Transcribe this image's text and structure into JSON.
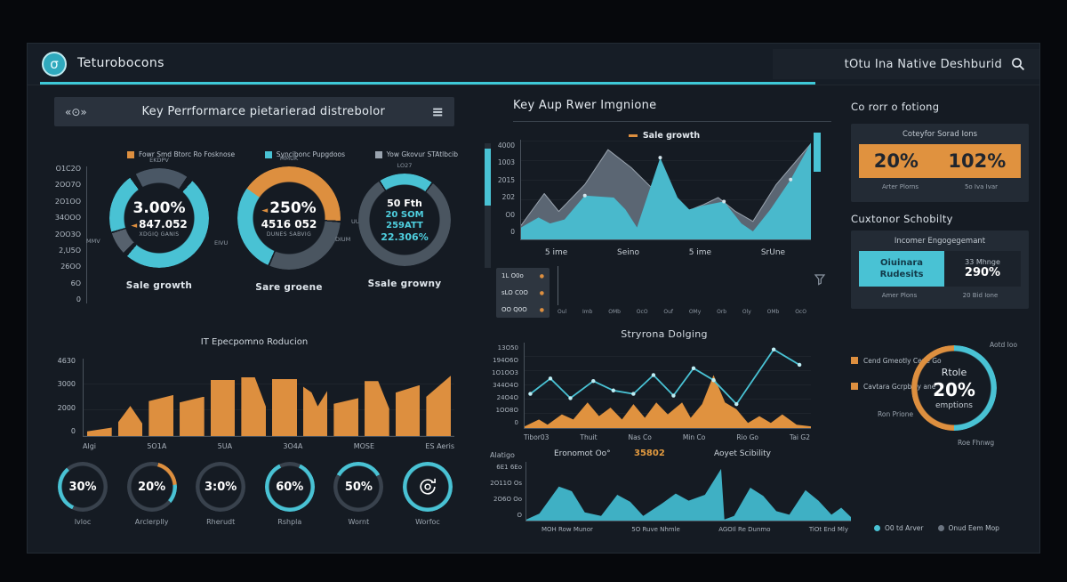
{
  "topbar": {
    "logo": "Teturobocons",
    "logo_glyph": "σ",
    "right_title": "tOtu Ina Native Deshburid"
  },
  "left": {
    "header_title": "Key Perrformarce pietarierad distrebolor",
    "view_icon": "«⊙»",
    "menu_icon": "≡",
    "legend": [
      {
        "label": "Fowr Smd Btorc Ro Fosknose",
        "color": "#dd8f3f"
      },
      {
        "label": "Syncibonc Pupgdoos",
        "color": "#49c2d4"
      },
      {
        "label": "Yow Gkovur STAtlbcib",
        "color": "#9aa4af"
      }
    ],
    "y_axis": [
      "O1C2O",
      "2OO7O",
      "2O1OO",
      "34OOO",
      "2OO3O",
      "2,U5O",
      "26OO",
      "6O",
      "0"
    ],
    "donuts": [
      {
        "label": "Sale growth",
        "tag_top": "EKDPV",
        "tag_side": "MMV",
        "size": 112,
        "t": 17,
        "lines": [
          {
            "t": "3.00%",
            "cls": "l-big"
          },
          {
            "t": "847.052",
            "cls": "l-mid",
            "arrow": true
          },
          {
            "t": "XDGIQ GANIS",
            "cls": "l-tiny"
          }
        ],
        "arcs": [
          {
            "c": "#4a5765",
            "f": -28,
            "l": 62
          },
          {
            "c": "#49c2d4",
            "f": 42,
            "l": 178
          },
          {
            "c": "#56616d",
            "f": 226,
            "l": 26
          },
          {
            "c": "#49c2d4",
            "f": 254,
            "l": 70
          }
        ]
      },
      {
        "label": "Sare groene",
        "tag_top": "MMUK",
        "tag_side": "EIVU",
        "tag_right": "UUA",
        "size": 116,
        "t": 18,
        "lines": [
          {
            "t": "250%",
            "cls": "l-big",
            "arrow": true
          },
          {
            "t": "4516 052",
            "cls": "l-mid"
          },
          {
            "t": "DUNES SABVIG",
            "cls": "l-tiny"
          }
        ],
        "arcs": [
          {
            "c": "#49c2d4",
            "f": -62,
            "l": 7
          },
          {
            "c": "#dd8f3f",
            "f": -55,
            "l": 148
          },
          {
            "c": "#4a5560",
            "f": 95,
            "l": 107
          },
          {
            "c": "#49c2d4",
            "f": 204,
            "l": 98
          }
        ]
      },
      {
        "label": "Ssale growny",
        "tag_top": "LO27",
        "tag_side": "DIUM",
        "size": 104,
        "t": 13,
        "lines": [
          {
            "t": "50 Fth",
            "cls": "l-mid2"
          },
          {
            "t": "20 SOM",
            "cls": "l-teal"
          },
          {
            "t": "259ATT",
            "cls": "l-teal"
          },
          {
            "t": "22.306%",
            "cls": "l-teal2"
          }
        ],
        "arcs": [
          {
            "c": "#49c2d4",
            "f": -32,
            "l": 68
          },
          {
            "c": "#4a5560",
            "f": 38,
            "l": 288
          }
        ]
      }
    ],
    "bar_chart": {
      "title": "IT Epecpomno Roducion",
      "color": "#dd8f3f",
      "y_ticks": [
        "4630",
        "3000",
        "2000",
        "0"
      ],
      "x_labels": [
        "Algi",
        "5O1A",
        "5UA",
        "3O4A",
        "MOSE",
        "ES Aeris"
      ],
      "values": [
        11,
        39,
        53,
        51,
        73,
        76,
        74,
        64,
        49,
        71,
        66,
        78
      ],
      "cuts": [
        "a",
        "b",
        "c",
        "c",
        "",
        "d",
        "",
        "e",
        "c",
        "d",
        "c",
        "f"
      ]
    },
    "kpis": [
      {
        "value": "30%",
        "label": "Ivloc",
        "arcs": [
          {
            "c": "#49c2d4",
            "f": 205,
            "l": 115
          }
        ]
      },
      {
        "value": "20%",
        "label": "Arclerplly",
        "arcs": [
          {
            "c": "#dd8f3f",
            "f": 15,
            "l": 70
          },
          {
            "c": "#49c2d4",
            "f": 85,
            "l": 45
          }
        ]
      },
      {
        "value": "3:0%",
        "label": "Rherudt",
        "arcs": []
      },
      {
        "value": "60%",
        "label": "Rshpla",
        "arcs": [
          {
            "c": "#49c2d4",
            "f": 25,
            "l": 310
          }
        ]
      },
      {
        "value": "50%",
        "label": "Wornt",
        "arcs": [
          {
            "c": "#49c2d4",
            "f": 300,
            "l": 120
          }
        ]
      },
      {
        "value": "",
        "label": "Worfoc",
        "icon": "sync",
        "arcs": [
          {
            "c": "#49c2d4",
            "f": 0,
            "l": 360
          }
        ]
      }
    ]
  },
  "middle": {
    "header": "Key Aup Rwer Imgnione",
    "legend": "Sale growth",
    "area": {
      "y_ticks": [
        "4000",
        "1003",
        "2015",
        "202",
        "O0",
        "0"
      ],
      "x_labels": [
        "5 ime",
        "Seino",
        "5 ime",
        "SrUne"
      ],
      "gray": [
        [
          0,
          14
        ],
        [
          8,
          46
        ],
        [
          13,
          28
        ],
        [
          22,
          55
        ],
        [
          30,
          90
        ],
        [
          38,
          72
        ],
        [
          45,
          52
        ],
        [
          50,
          40
        ],
        [
          57,
          28
        ],
        [
          63,
          35
        ],
        [
          68,
          42
        ],
        [
          74,
          28
        ],
        [
          80,
          18
        ],
        [
          88,
          55
        ],
        [
          100,
          96
        ]
      ],
      "teal": [
        [
          0,
          12
        ],
        [
          6,
          22
        ],
        [
          10,
          16
        ],
        [
          15,
          20
        ],
        [
          22,
          44
        ],
        [
          32,
          42
        ],
        [
          36,
          30
        ],
        [
          40,
          12
        ],
        [
          48,
          82
        ],
        [
          54,
          42
        ],
        [
          58,
          30
        ],
        [
          63,
          34
        ],
        [
          70,
          38
        ],
        [
          76,
          16
        ],
        [
          80,
          8
        ],
        [
          86,
          30
        ],
        [
          93,
          60
        ],
        [
          100,
          97
        ]
      ]
    },
    "mini": {
      "box_lines": [
        "1L O0o",
        "sLO C0O",
        "OO Q0O"
      ],
      "teal": [
        78,
        52,
        68,
        58,
        72,
        62,
        85,
        75,
        66,
        72
      ],
      "gray": [
        26,
        22,
        25,
        23,
        27,
        24,
        29,
        27,
        25,
        22
      ],
      "x_labels": [
        "Oul",
        "Imb",
        "OMb",
        "OcO",
        "Ouf",
        "OMy",
        "Orb",
        "Oly",
        "OMb",
        "OcO"
      ]
    },
    "mid_title": "Stryrona Dolging",
    "line": {
      "y_ticks": [
        "13O50",
        "194O6O",
        "1O1OO3",
        "344O4O",
        "24O4O",
        "1OO8O",
        "0"
      ],
      "x_labels": [
        "Tibor03",
        "Thuit",
        "Nas Co",
        "Min Co",
        "Rio Go",
        "Tai G2"
      ],
      "teal": [
        [
          2,
          40
        ],
        [
          9,
          58
        ],
        [
          16,
          35
        ],
        [
          24,
          55
        ],
        [
          31,
          44
        ],
        [
          38,
          40
        ],
        [
          45,
          62
        ],
        [
          52,
          38
        ],
        [
          59,
          70
        ],
        [
          66,
          56
        ],
        [
          74,
          28
        ],
        [
          87,
          92
        ],
        [
          96,
          74
        ]
      ],
      "orange": [
        [
          0,
          2
        ],
        [
          5,
          10
        ],
        [
          8,
          4
        ],
        [
          13,
          16
        ],
        [
          17,
          10
        ],
        [
          22,
          30
        ],
        [
          26,
          14
        ],
        [
          30,
          24
        ],
        [
          34,
          10
        ],
        [
          38,
          28
        ],
        [
          42,
          12
        ],
        [
          46,
          30
        ],
        [
          50,
          16
        ],
        [
          55,
          30
        ],
        [
          58,
          12
        ],
        [
          62,
          28
        ],
        [
          66,
          62
        ],
        [
          70,
          30
        ],
        [
          74,
          22
        ],
        [
          78,
          6
        ],
        [
          82,
          14
        ],
        [
          86,
          6
        ],
        [
          90,
          16
        ],
        [
          95,
          4
        ],
        [
          100,
          2
        ]
      ]
    },
    "bottom": {
      "row_label": "Alatigo",
      "title": "Eronomot Oo°",
      "value": "35802",
      "title2": "Aoyet Scibility",
      "y_ticks": [
        "6E1 6Eo",
        "2O11O Os",
        "2O6O Oo",
        "O"
      ],
      "points": [
        [
          0,
          2
        ],
        [
          4,
          12
        ],
        [
          10,
          58
        ],
        [
          14,
          50
        ],
        [
          18,
          14
        ],
        [
          23,
          8
        ],
        [
          28,
          44
        ],
        [
          32,
          32
        ],
        [
          36,
          8
        ],
        [
          42,
          30
        ],
        [
          46,
          46
        ],
        [
          50,
          34
        ],
        [
          55,
          44
        ],
        [
          60,
          88
        ],
        [
          61,
          2
        ],
        [
          64,
          8
        ],
        [
          69,
          56
        ],
        [
          73,
          42
        ],
        [
          77,
          16
        ],
        [
          81,
          10
        ],
        [
          86,
          52
        ],
        [
          90,
          34
        ],
        [
          94,
          10
        ],
        [
          97,
          22
        ],
        [
          100,
          6
        ]
      ],
      "x_labels": [
        "MOH Row Munor",
        "5O Ruve Nhmle",
        "AGOIl Re Dunmo",
        "TiOt End Mly"
      ],
      "legend": [
        {
          "label": "O0 td Arver",
          "color": "#49c2d4"
        },
        {
          "label": "Onud Eem Mop",
          "color": "#6b7480"
        }
      ]
    }
  },
  "right": {
    "s1": "Co rorr o fotiong",
    "card1": {
      "title": "Coteyfor Sorad Ions",
      "v1": "20%",
      "v2": "102%",
      "l1": "Arter Plorns",
      "l2": "5o Iva Ivar"
    },
    "s2": "Cuxtonor Schobilty",
    "card2": {
      "title": "Incomer Engogegemant",
      "teal1": "Oiuinara",
      "teal2": "Rudesits",
      "r1": "33 Mhnge",
      "r2": "290%",
      "l1": "Amer Plons",
      "l2": "20 Bid Ione"
    },
    "legend": [
      {
        "label": "Cend Gmeotly Ceve Go",
        "color": "#dd8f3f"
      },
      {
        "label": "Cavtara Gcrpbwy ane",
        "color": "#dd8f3f"
      }
    ],
    "side_label": "Ron Prione",
    "donut": {
      "t": 7,
      "lines": [
        "Rtole",
        "20%",
        "emptions"
      ],
      "tag_top": "Aotd Ioo",
      "tag_bottom": "Roe Fhnwg",
      "arcs": [
        {
          "c": "#dd8f3f",
          "f": 180,
          "l": 180
        },
        {
          "c": "#49c2d4",
          "f": 0,
          "l": 180
        }
      ]
    }
  },
  "colors": {
    "teal": "#49c2d4",
    "orange": "#dd8f3f",
    "gray_series": "#5b6673",
    "track": "#39424d"
  }
}
